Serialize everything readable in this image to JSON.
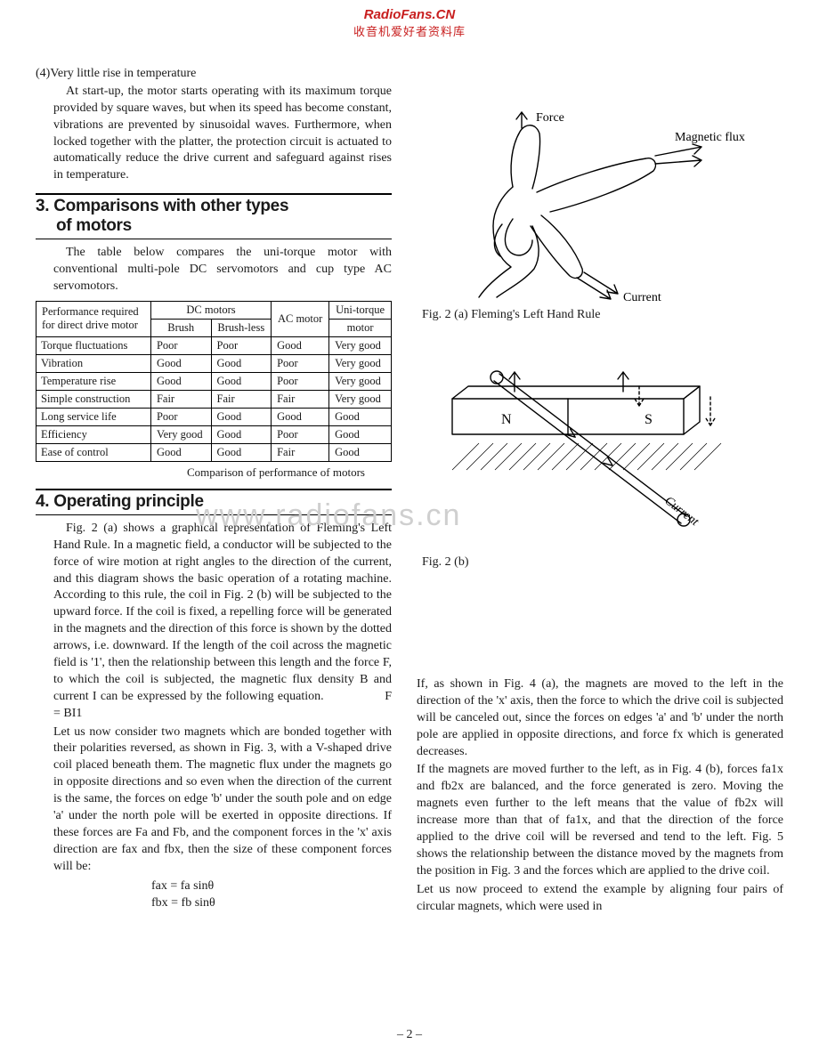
{
  "watermark": {
    "site": "RadioFans.CN",
    "tagline": "收音机爱好者资料库",
    "site_color": "#c81e1e",
    "tagline_color": "#c81e1e",
    "mid": "www.radiofans.cn",
    "mid_color": "#cfcfcf"
  },
  "listItem4": {
    "label": "(4)Very little rise in temperature",
    "body": "At start-up, the motor starts operating with its maximum torque provided by square waves, but when its speed has become constant, vibrations are prevented by sinusoidal waves. Furthermore, when locked together with the platter, the protection circuit is actuated to automatically reduce the drive current and safeguard against rises in temperature."
  },
  "section3": {
    "heading_num": "3.",
    "heading_line1": "Comparisons with other types",
    "heading_line2": "of motors",
    "intro": "The table below compares the uni-torque motor with conventional multi-pole DC servomotors and cup type AC servomotors."
  },
  "table": {
    "caption": "Comparison of performance of motors",
    "row_header_line1": "Performance required",
    "row_header_line2": "for direct drive motor",
    "dc_header": "DC motors",
    "brush": "Brush",
    "brushless": "Brush-less",
    "ac": "AC motor",
    "uni_line1": "Uni-torque",
    "uni_line2": "motor",
    "rows": [
      {
        "label": "Torque fluctuations",
        "brush": "Poor",
        "bless": "Poor",
        "ac": "Good",
        "uni": "Very good"
      },
      {
        "label": "Vibration",
        "brush": "Good",
        "bless": "Good",
        "ac": "Poor",
        "uni": "Very good"
      },
      {
        "label": "Temperature rise",
        "brush": "Good",
        "bless": "Good",
        "ac": "Poor",
        "uni": "Very good"
      },
      {
        "label": "Simple construction",
        "brush": "Fair",
        "bless": "Fair",
        "ac": "Fair",
        "uni": "Very good"
      },
      {
        "label": "Long service life",
        "brush": "Poor",
        "bless": "Good",
        "ac": "Good",
        "uni": "Good"
      },
      {
        "label": "Efficiency",
        "brush": "Very good",
        "bless": "Good",
        "ac": "Poor",
        "uni": "Good"
      },
      {
        "label": "Ease of control",
        "brush": "Good",
        "bless": "Good",
        "ac": "Fair",
        "uni": "Good"
      }
    ]
  },
  "section4": {
    "heading_num": "4.",
    "heading": "Operating principle",
    "p1": "Fig. 2 (a) shows a graphical representation of Fleming's Left Hand Rule. In a magnetic field, a conductor will be subjected to the force of wire motion at right angles to the direction of the current, and this diagram shows the basic operation of a rotating machine. According to this rule, the coil in Fig. 2 (b) will be subjected to the upward force. If the coil is fixed, a repelling force will be generated in the magnets and the direction of this force is shown by the dotted arrows, i.e. downward. If the length of the coil across the magnetic field is '1', then the relationship between this length and the force F, to which the coil is subjected, the magnetic flux density B and current I can be expressed by the following equation.",
    "eq1_label": "F = BI1",
    "p2": "Let us now consider two magnets which are bonded together with their polarities reversed, as shown in Fig. 3, with a V-shaped drive coil placed beneath them. The magnetic flux under the magnets go in opposite directions and so even when the direction of the current is the same, the forces on edge 'b' under the south pole and on edge 'a' under the north pole will be exerted in opposite directions. If these forces are Fa and Fb, and the component forces in the 'x' axis direction are fax and fbx, then the size of these component forces will be:",
    "eq2a": "fax = fa sinθ",
    "eq2b": "fbx = fb sinθ"
  },
  "rightcol": {
    "fig2a_caption": "Fig. 2 (a) Fleming's Left Hand Rule",
    "fig2a_force": "Force",
    "fig2a_flux": "Magnetic flux",
    "fig2a_current": "Current",
    "fig2b_caption": "Fig. 2 (b)",
    "fig2b_N": "N",
    "fig2b_S": "S",
    "fig2b_current": "Current",
    "p1": "If, as shown in Fig. 4 (a), the magnets are moved to the left in the direction of the 'x' axis, then the force to which the drive coil is subjected will be canceled out, since the forces on edges 'a' and 'b' under the north pole are applied in opposite directions, and force fx which is generated decreases.",
    "p2": "If the magnets are moved further to the left, as in Fig. 4 (b), forces fa1x and fb2x are balanced, and the force generated is zero. Moving the magnets even further to the left means that the value of fb2x will increase more than that of fa1x, and that the direction of the force applied to the drive coil will be reversed and tend to the left. Fig. 5 shows the relationship between the distance moved by the magnets from the position in Fig. 3 and the forces which are applied to the drive coil.",
    "p3": "Let us now proceed to extend the example by aligning four pairs of circular magnets, which were used in"
  },
  "pagenum": "– 2 –",
  "svg": {
    "stroke": "#000000",
    "stroke_width": 1.4
  }
}
